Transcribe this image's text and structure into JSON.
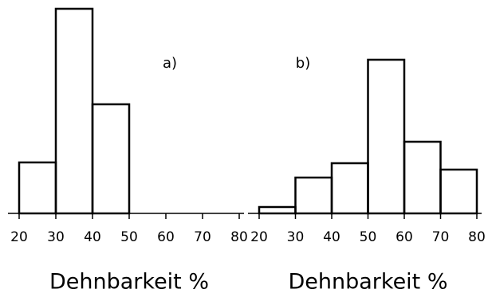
{
  "chart_data": [
    {
      "type": "histogram",
      "annotation": "a)",
      "xlabel": "Dehnbarkeit %",
      "bins": [
        20,
        30,
        40,
        50
      ],
      "values": [
        64,
        257,
        137
      ],
      "xlim": [
        20,
        80
      ],
      "xticks": [
        20,
        30,
        40,
        50,
        60,
        70,
        80
      ],
      "ylim": [
        0,
        260
      ],
      "color": "#000000"
    },
    {
      "type": "histogram",
      "annotation": "b)",
      "xlabel": "Dehnbarkeit %",
      "bins": [
        20,
        30,
        40,
        50,
        60,
        70,
        80
      ],
      "values": [
        8,
        45,
        63,
        193,
        90,
        55
      ],
      "xlim": [
        20,
        80
      ],
      "xticks": [
        20,
        30,
        40,
        50,
        60,
        70,
        80
      ],
      "ylim": [
        0,
        260
      ],
      "color": "#000000"
    }
  ]
}
